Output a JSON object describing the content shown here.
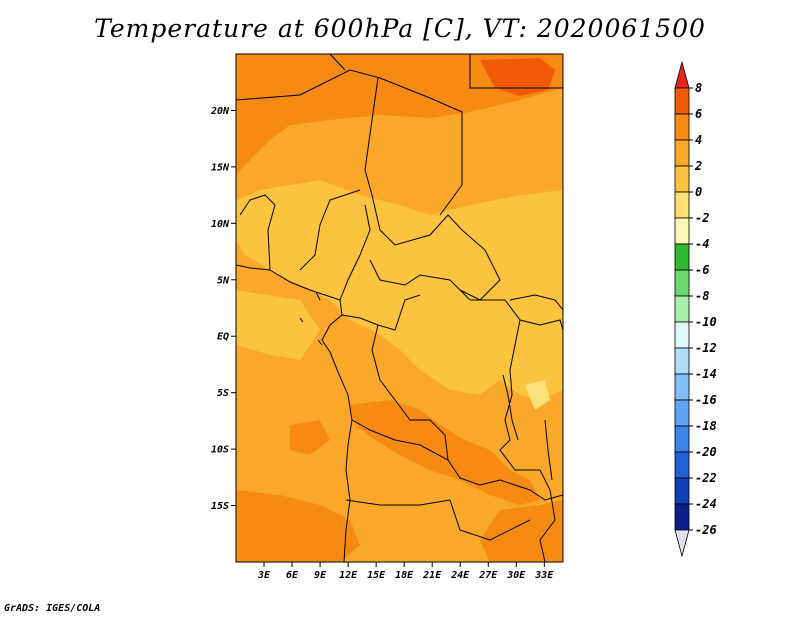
{
  "title": "Temperature at 600hPa [C], VT: 2020061500",
  "credit": "GrADS: IGES/COLA",
  "map": {
    "lon_range": [
      0,
      35
    ],
    "lat_range": [
      -20,
      25
    ],
    "lat_ticks": [
      {
        "value": 20,
        "label": "20N"
      },
      {
        "value": 15,
        "label": "15N"
      },
      {
        "value": 10,
        "label": "10N"
      },
      {
        "value": 5,
        "label": "5N"
      },
      {
        "value": 0,
        "label": "EQ"
      },
      {
        "value": -5,
        "label": "5S"
      },
      {
        "value": -10,
        "label": "10S"
      },
      {
        "value": -15,
        "label": "15S"
      }
    ],
    "lon_ticks": [
      {
        "value": 3,
        "label": "3E"
      },
      {
        "value": 6,
        "label": "6E"
      },
      {
        "value": 9,
        "label": "9E"
      },
      {
        "value": 12,
        "label": "12E"
      },
      {
        "value": 15,
        "label": "15E"
      },
      {
        "value": 18,
        "label": "18E"
      },
      {
        "value": 21,
        "label": "21E"
      },
      {
        "value": 24,
        "label": "24E"
      },
      {
        "value": 27,
        "label": "27E"
      },
      {
        "value": 30,
        "label": "30E"
      },
      {
        "value": 33,
        "label": "33E"
      }
    ]
  },
  "colorbar": {
    "levels": [
      "8",
      "6",
      "4",
      "2",
      "0",
      "-2",
      "-4",
      "-6",
      "-8",
      "-10",
      "-12",
      "-14",
      "-16",
      "-18",
      "-20",
      "-22",
      "-24",
      "-26"
    ],
    "colors": [
      "#e8321a",
      "#f05a0a",
      "#f78a12",
      "#f9a82a",
      "#fbc33e",
      "#fde07a",
      "#fdf6b5",
      "#30b830",
      "#6cd86c",
      "#a9efa9",
      "#e2f7fb",
      "#b3dcfb",
      "#7fbef7",
      "#5fa4f2",
      "#3b84ea",
      "#1f62d8",
      "#0f40b8",
      "#0a1f8a",
      "#07106a"
    ],
    "top_arrow_color": "#e42818",
    "bottom_arrow_color": "#e0e0f5"
  },
  "field_colors": {
    "c8": "#f05a0a",
    "c6": "#f78a12",
    "c4": "#f9a82a",
    "c2": "#fbc33e",
    "c0": "#fde07a"
  }
}
